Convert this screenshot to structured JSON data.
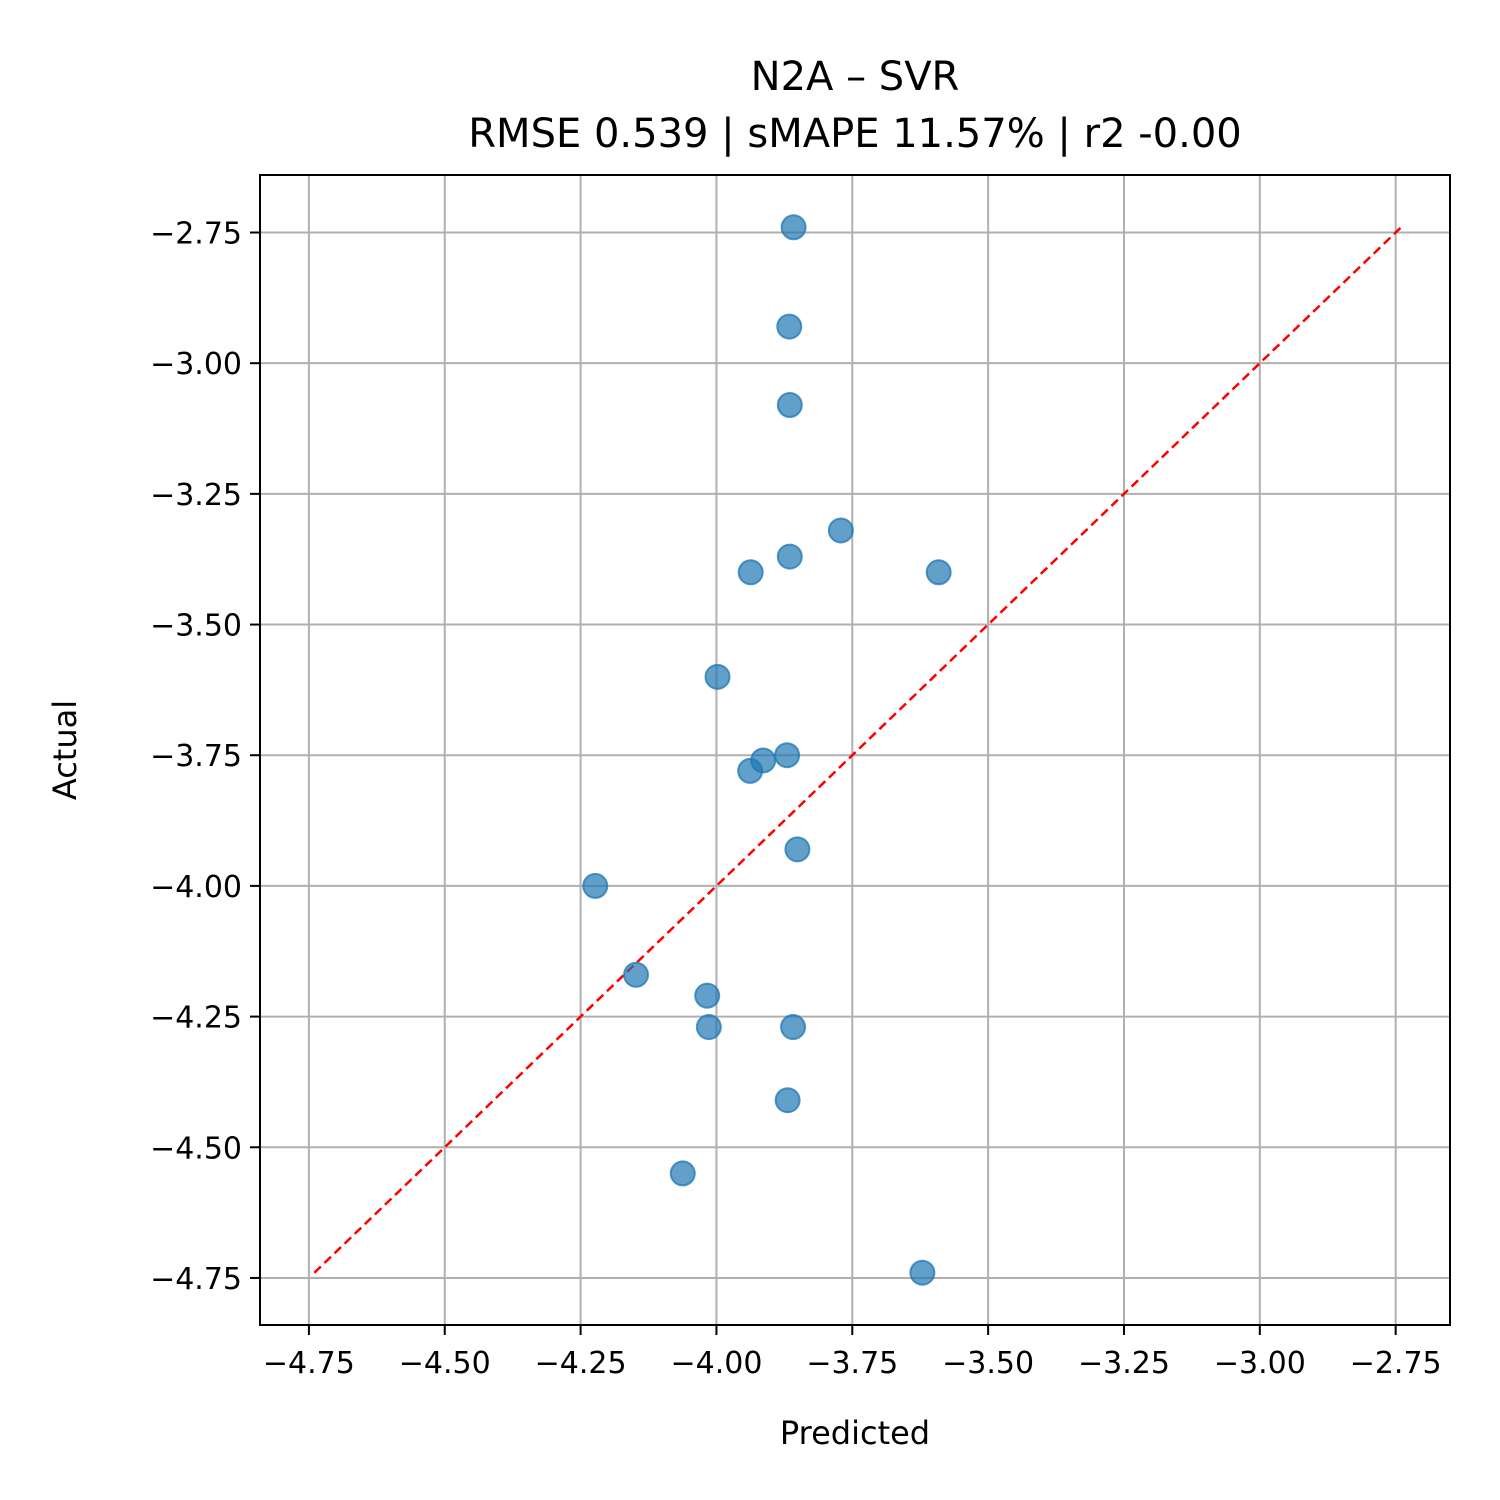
{
  "chart_data": {
    "type": "scatter",
    "title": "N2A – SVR",
    "subtitle": "RMSE 0.539 | sMAPE 11.57%  | r2 -0.00",
    "xlabel": "Predicted",
    "ylabel": "Actual",
    "xlim": [
      -4.84,
      -2.65
    ],
    "ylim": [
      -4.84,
      -2.64
    ],
    "xticks": [
      -4.75,
      -4.5,
      -4.25,
      -4.0,
      -3.75,
      -3.5,
      -3.25,
      -3.0,
      -2.75
    ],
    "yticks": [
      -2.75,
      -3.0,
      -3.25,
      -3.5,
      -3.75,
      -4.0,
      -4.25,
      -4.5,
      -4.75
    ],
    "xtick_labels": [
      "−4.75",
      "−4.50",
      "−4.25",
      "−4.00",
      "−3.75",
      "−3.50",
      "−3.25",
      "−3.00",
      "−2.75"
    ],
    "ytick_labels": [
      "−2.75",
      "−3.00",
      "−3.25",
      "−3.50",
      "−3.75",
      "−4.00",
      "−4.25",
      "−4.50",
      "−4.75"
    ],
    "grid": true,
    "point_color": "#1f77b4",
    "reference_line_color": "#ff0000",
    "reference_line": [
      [
        -4.74,
        -4.74
      ],
      [
        -2.74,
        -2.74
      ]
    ],
    "points": [
      {
        "x": -3.858,
        "y": -2.74
      },
      {
        "x": -3.866,
        "y": -2.93
      },
      {
        "x": -3.865,
        "y": -3.08
      },
      {
        "x": -3.771,
        "y": -3.32
      },
      {
        "x": -3.865,
        "y": -3.37
      },
      {
        "x": -3.937,
        "y": -3.4
      },
      {
        "x": -3.591,
        "y": -3.4
      },
      {
        "x": -3.998,
        "y": -3.6
      },
      {
        "x": -3.87,
        "y": -3.75
      },
      {
        "x": -3.914,
        "y": -3.76
      },
      {
        "x": -3.938,
        "y": -3.78
      },
      {
        "x": -3.851,
        "y": -3.93
      },
      {
        "x": -4.223,
        "y": -4.0
      },
      {
        "x": -4.148,
        "y": -4.17
      },
      {
        "x": -4.017,
        "y": -4.21
      },
      {
        "x": -4.014,
        "y": -4.27
      },
      {
        "x": -3.859,
        "y": -4.27
      },
      {
        "x": -3.869,
        "y": -4.41
      },
      {
        "x": -4.062,
        "y": -4.55
      },
      {
        "x": -3.621,
        "y": -4.74
      }
    ]
  }
}
